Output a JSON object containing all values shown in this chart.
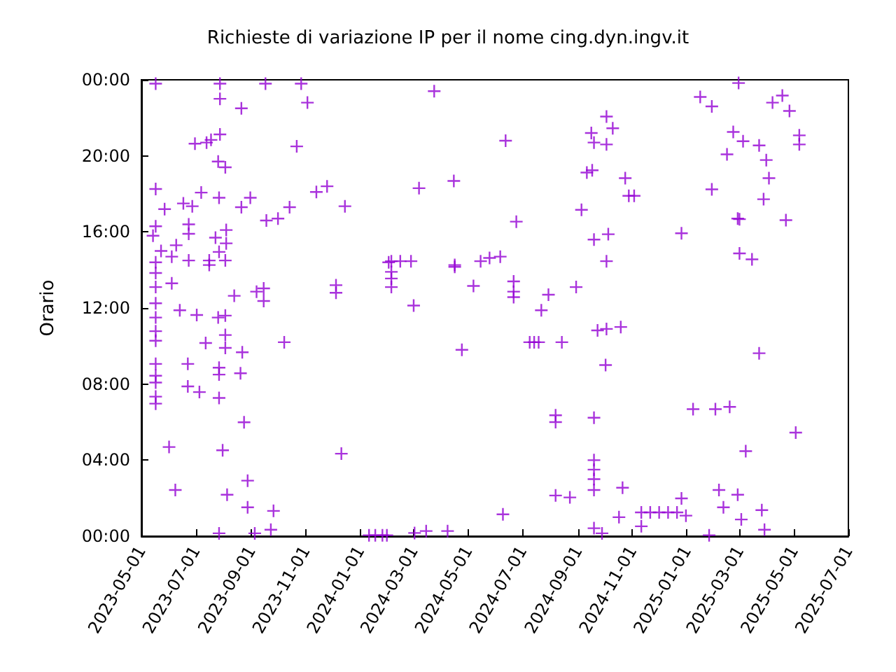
{
  "chart_data": {
    "type": "scatter",
    "title": "Richieste di variazione IP per il nome cing.dyn.ingv.it",
    "ylabel": "Orario",
    "marker": "cross",
    "xlim": [
      "2023-05-01",
      "2025-07-01"
    ],
    "xticks": [
      "2023-05-01",
      "2023-07-01",
      "2023-09-01",
      "2023-11-01",
      "2024-01-01",
      "2024-03-01",
      "2024-05-01",
      "2024-07-01",
      "2024-09-01",
      "2024-11-01",
      "2025-01-01",
      "2025-03-01",
      "2025-05-01",
      "2025-07-01"
    ],
    "ylim": [
      0,
      24
    ],
    "yticks": [
      {
        "value": 0,
        "label": "00:00"
      },
      {
        "value": 4,
        "label": "04:00"
      },
      {
        "value": 8,
        "label": "08:00"
      },
      {
        "value": 12,
        "label": "12:00"
      },
      {
        "value": 16,
        "label": "16:00"
      },
      {
        "value": 20,
        "label": "20:00"
      },
      {
        "value": 24,
        "label": "00:00"
      }
    ],
    "series": [
      {
        "color": "#9400d3",
        "x": [
          "2023-05-14",
          "2023-05-17",
          "2023-05-17",
          "2023-05-17",
          "2023-05-17",
          "2023-05-17",
          "2023-05-17",
          "2023-05-17",
          "2023-05-17",
          "2023-05-17",
          "2023-05-17",
          "2023-05-17",
          "2023-05-17",
          "2023-05-17",
          "2023-05-17",
          "2023-05-17",
          "2023-05-23",
          "2023-05-27",
          "2023-06-01",
          "2023-06-04",
          "2023-06-04",
          "2023-06-08",
          "2023-06-09",
          "2023-06-13",
          "2023-06-17",
          "2023-06-22",
          "2023-06-22",
          "2023-06-23",
          "2023-06-23",
          "2023-06-23",
          "2023-06-27",
          "2023-06-30",
          "2023-07-02",
          "2023-07-05",
          "2023-07-07",
          "2023-07-12",
          "2023-07-13",
          "2023-07-16",
          "2023-07-16",
          "2023-07-18",
          "2023-07-23",
          "2023-07-26",
          "2023-07-26",
          "2023-07-27",
          "2023-07-27",
          "2023-07-27",
          "2023-07-27",
          "2023-07-27",
          "2023-07-27",
          "2023-07-28",
          "2023-07-28",
          "2023-07-28",
          "2023-07-31",
          "2023-08-03",
          "2023-08-03",
          "2023-08-03",
          "2023-08-03",
          "2023-08-03",
          "2023-08-04",
          "2023-08-04",
          "2023-08-05",
          "2023-08-13",
          "2023-08-21",
          "2023-08-21",
          "2023-08-22",
          "2023-08-20",
          "2023-08-24",
          "2023-08-28",
          "2023-08-28",
          "2023-08-31",
          "2023-09-05",
          "2023-09-07",
          "2023-09-15",
          "2023-09-15",
          "2023-09-17",
          "2023-09-18",
          "2023-09-23",
          "2023-09-26",
          "2023-10-01",
          "2023-10-08",
          "2023-10-14",
          "2023-10-22",
          "2023-10-27",
          "2023-11-03",
          "2023-11-13",
          "2023-11-25",
          "2023-12-05",
          "2023-12-05",
          "2023-12-11",
          "2023-12-15",
          "2024-01-11",
          "2024-01-18",
          "2024-01-26",
          "2024-01-31",
          "2024-02-02",
          "2024-02-05",
          "2024-02-05",
          "2024-02-05",
          "2024-02-05",
          "2024-02-15",
          "2024-02-27",
          "2024-03-01",
          "2024-03-02",
          "2024-03-07",
          "2024-03-15",
          "2024-03-24",
          "2024-04-08",
          "2024-04-15",
          "2024-04-16",
          "2024-04-16",
          "2024-04-24",
          "2024-05-07",
          "2024-05-15",
          "2024-05-25",
          "2024-06-06",
          "2024-06-09",
          "2024-06-12",
          "2024-06-21",
          "2024-06-21",
          "2024-06-21",
          "2024-06-24",
          "2024-07-09",
          "2024-07-14",
          "2024-07-19",
          "2024-07-22",
          "2024-07-30",
          "2024-08-07",
          "2024-08-07",
          "2024-08-07",
          "2024-08-14",
          "2024-08-23",
          "2024-08-30",
          "2024-09-05",
          "2024-09-11",
          "2024-09-16",
          "2024-09-17",
          "2024-09-19",
          "2024-09-19",
          "2024-09-19",
          "2024-09-19",
          "2024-09-19",
          "2024-09-19",
          "2024-09-19",
          "2024-09-19",
          "2024-09-23",
          "2024-09-28",
          "2024-10-02",
          "2024-10-03",
          "2024-10-03",
          "2024-10-03",
          "2024-10-03",
          "2024-10-05",
          "2024-10-10",
          "2024-10-17",
          "2024-10-19",
          "2024-10-21",
          "2024-10-24",
          "2024-10-28",
          "2024-11-03",
          "2024-11-11",
          "2024-11-11",
          "2024-11-21",
          "2024-12-01",
          "2024-12-11",
          "2024-12-21",
          "2024-12-26",
          "2024-12-26",
          "2024-12-31",
          "2025-01-08",
          "2025-01-16",
          "2025-01-26",
          "2025-01-29",
          "2025-01-29",
          "2025-02-02",
          "2025-02-06",
          "2025-02-11",
          "2025-02-15",
          "2025-02-18",
          "2025-02-22",
          "2025-02-27",
          "2025-02-27",
          "2025-02-28",
          "2025-03-01",
          "2025-03-01",
          "2025-03-03",
          "2025-03-05",
          "2025-03-08",
          "2025-03-15",
          "2025-03-23",
          "2025-03-23",
          "2025-03-26",
          "2025-03-28",
          "2025-03-29",
          "2025-03-31",
          "2025-04-03",
          "2025-04-07",
          "2025-04-18",
          "2025-04-22",
          "2025-04-26",
          "2025-05-03",
          "2025-05-07",
          "2025-05-07"
        ],
        "values": [
          15.8,
          23.8,
          18.26,
          16.3,
          14.4,
          13.84,
          13.1,
          12.25,
          11.5,
          10.78,
          10.28,
          9.06,
          8.44,
          8.08,
          7.34,
          6.97,
          15.0,
          17.2,
          4.69,
          14.7,
          13.3,
          2.43,
          15.3,
          11.88,
          17.5,
          9.06,
          7.88,
          16.4,
          15.9,
          14.5,
          17.35,
          20.64,
          11.63,
          7.58,
          18.07,
          10.16,
          20.7,
          14.5,
          14.26,
          20.84,
          15.7,
          19.7,
          11.5,
          14.95,
          17.8,
          8.86,
          8.5,
          7.27,
          0.15,
          21.13,
          23.8,
          23.0,
          4.52,
          19.4,
          14.5,
          11.6,
          10.58,
          9.9,
          16.1,
          15.4,
          2.18,
          12.64,
          22.5,
          17.3,
          9.67,
          8.57,
          5.99,
          2.92,
          1.52,
          17.8,
          0.15,
          12.86,
          13.03,
          12.37,
          23.8,
          16.6,
          0.34,
          1.33,
          16.7,
          10.2,
          17.3,
          20.5,
          23.8,
          22.8,
          18.1,
          18.4,
          13.2,
          12.8,
          4.34,
          17.35,
          0.05,
          0.05,
          0.05,
          0.05,
          14.4,
          14.46,
          13.9,
          13.55,
          13.1,
          14.46,
          14.46,
          12.13,
          0.17,
          18.3,
          0.27,
          23.4,
          0.27,
          18.68,
          14.26,
          14.16,
          9.8,
          13.16,
          14.46,
          14.63,
          14.7,
          1.15,
          20.8,
          13.4,
          12.86,
          12.57,
          16.54,
          10.2,
          10.2,
          10.2,
          11.88,
          12.7,
          6.36,
          6.0,
          2.14,
          10.2,
          2.04,
          13.1,
          17.16,
          19.12,
          21.2,
          19.24,
          20.7,
          15.6,
          6.23,
          4.0,
          3.5,
          3.0,
          2.43,
          0.42,
          10.82,
          0.15,
          9.0,
          22.07,
          20.6,
          14.46,
          10.9,
          15.88,
          21.45,
          1.0,
          11.0,
          2.55,
          18.83,
          17.9,
          17.9,
          1.25,
          0.52,
          1.25,
          1.25,
          1.25,
          1.25,
          1.99,
          15.93,
          1.08,
          6.68,
          23.1,
          0.05,
          22.6,
          18.24,
          6.68,
          2.43,
          1.52,
          20.08,
          6.8,
          21.26,
          2.18,
          16.7,
          23.83,
          16.67,
          14.87,
          0.88,
          20.77,
          4.47,
          14.56,
          20.55,
          9.62,
          1.37,
          17.72,
          0.34,
          19.78,
          18.83,
          22.8,
          23.17,
          16.62,
          22.36,
          5.45,
          21.08,
          20.6
        ]
      }
    ]
  }
}
